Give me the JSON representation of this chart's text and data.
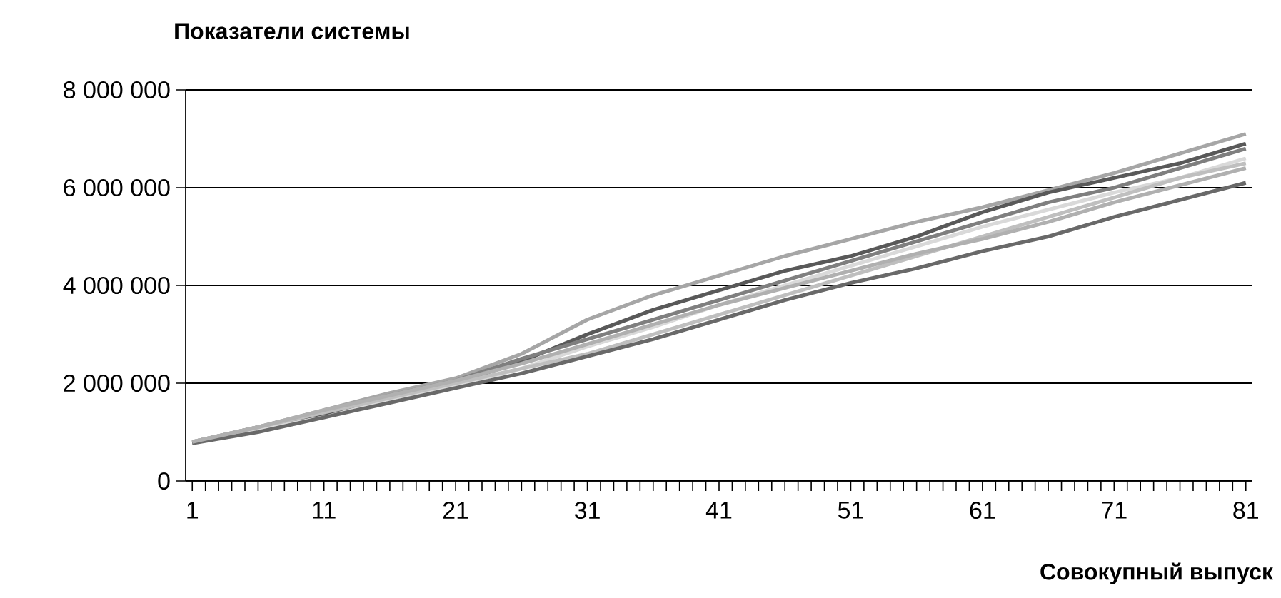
{
  "chart_data": {
    "type": "line",
    "xlabel": "Совокупный выпуск",
    "ylabel": "Показатели системы",
    "x": [
      1,
      6,
      11,
      16,
      21,
      26,
      31,
      36,
      41,
      46,
      51,
      56,
      61,
      66,
      71,
      76,
      81
    ],
    "series": [
      {
        "color": "#a6a6a6",
        "values": [
          800000,
          1100000,
          1450000,
          1800000,
          2100000,
          2600000,
          3300000,
          3800000,
          4200000,
          4600000,
          4950000,
          5300000,
          5600000,
          5950000,
          6300000,
          6700000,
          7100000
        ]
      },
      {
        "color": "#595959",
        "values": [
          780000,
          1050000,
          1350000,
          1700000,
          2000000,
          2450000,
          3000000,
          3500000,
          3900000,
          4300000,
          4600000,
          5000000,
          5500000,
          5900000,
          6200000,
          6500000,
          6900000
        ]
      },
      {
        "color": "#7f7f7f",
        "values": [
          800000,
          1100000,
          1400000,
          1750000,
          2050000,
          2500000,
          2900000,
          3300000,
          3700000,
          4100000,
          4500000,
          4900000,
          5300000,
          5700000,
          6000000,
          6400000,
          6800000
        ]
      },
      {
        "color": "#d9d9d9",
        "values": [
          800000,
          1050000,
          1300000,
          1650000,
          1950000,
          2300000,
          2750000,
          3150000,
          3600000,
          4000000,
          4400000,
          4800000,
          5200000,
          5550000,
          5900000,
          6200000,
          6600000
        ]
      },
      {
        "color": "#bfbfbf",
        "values": [
          800000,
          1100000,
          1400000,
          1700000,
          2000000,
          2300000,
          2600000,
          3000000,
          3400000,
          3800000,
          4200000,
          4600000,
          5000000,
          5400000,
          5800000,
          6200000,
          6500000
        ]
      },
      {
        "color": "#696969",
        "values": [
          770000,
          1000000,
          1300000,
          1600000,
          1900000,
          2200000,
          2550000,
          2900000,
          3300000,
          3700000,
          4050000,
          4350000,
          4700000,
          5000000,
          5400000,
          5750000,
          6100000
        ]
      },
      {
        "color": "#b0b0b0",
        "values": [
          800000,
          1100000,
          1450000,
          1750000,
          2050000,
          2400000,
          2800000,
          3200000,
          3600000,
          3950000,
          4300000,
          4650000,
          4950000,
          5300000,
          5700000,
          6050000,
          6400000
        ]
      }
    ],
    "xlim": [
      0.5,
      81.5
    ],
    "xticks": [
      1,
      {
        "value": 2,
        "label": null
      },
      {
        "value": 3,
        "label": null
      },
      {
        "value": 4,
        "label": null
      },
      {
        "value": 5,
        "label": null
      },
      {
        "value": 6,
        "label": null
      },
      {
        "value": 7,
        "label": null
      },
      {
        "value": 8,
        "label": null
      },
      {
        "value": 9,
        "label": null
      },
      {
        "value": 10,
        "label": null
      },
      11,
      {
        "value": 12,
        "label": null
      },
      {
        "value": 13,
        "label": null
      },
      {
        "value": 14,
        "label": null
      },
      {
        "value": 15,
        "label": null
      },
      {
        "value": 16,
        "label": null
      },
      {
        "value": 17,
        "label": null
      },
      {
        "value": 18,
        "label": null
      },
      {
        "value": 19,
        "label": null
      },
      {
        "value": 20,
        "label": null
      },
      21,
      {
        "value": 22,
        "label": null
      },
      {
        "value": 23,
        "label": null
      },
      {
        "value": 24,
        "label": null
      },
      {
        "value": 25,
        "label": null
      },
      {
        "value": 26,
        "label": null
      },
      {
        "value": 27,
        "label": null
      },
      {
        "value": 28,
        "label": null
      },
      {
        "value": 29,
        "label": null
      },
      {
        "value": 30,
        "label": null
      },
      31,
      {
        "value": 32,
        "label": null
      },
      {
        "value": 33,
        "label": null
      },
      {
        "value": 34,
        "label": null
      },
      {
        "value": 35,
        "label": null
      },
      {
        "value": 36,
        "label": null
      },
      {
        "value": 37,
        "label": null
      },
      {
        "value": 38,
        "label": null
      },
      {
        "value": 39,
        "label": null
      },
      {
        "value": 40,
        "label": null
      },
      41,
      {
        "value": 42,
        "label": null
      },
      {
        "value": 43,
        "label": null
      },
      {
        "value": 44,
        "label": null
      },
      {
        "value": 45,
        "label": null
      },
      {
        "value": 46,
        "label": null
      },
      {
        "value": 47,
        "label": null
      },
      {
        "value": 48,
        "label": null
      },
      {
        "value": 49,
        "label": null
      },
      {
        "value": 50,
        "label": null
      },
      51,
      {
        "value": 52,
        "label": null
      },
      {
        "value": 53,
        "label": null
      },
      {
        "value": 54,
        "label": null
      },
      {
        "value": 55,
        "label": null
      },
      {
        "value": 56,
        "label": null
      },
      {
        "value": 57,
        "label": null
      },
      {
        "value": 58,
        "label": null
      },
      {
        "value": 59,
        "label": null
      },
      {
        "value": 60,
        "label": null
      },
      61,
      {
        "value": 62,
        "label": null
      },
      {
        "value": 63,
        "label": null
      },
      {
        "value": 64,
        "label": null
      },
      {
        "value": 65,
        "label": null
      },
      {
        "value": 66,
        "label": null
      },
      {
        "value": 67,
        "label": null
      },
      {
        "value": 68,
        "label": null
      },
      {
        "value": 69,
        "label": null
      },
      {
        "value": 70,
        "label": null
      },
      71,
      {
        "value": 72,
        "label": null
      },
      {
        "value": 73,
        "label": null
      },
      {
        "value": 74,
        "label": null
      },
      {
        "value": 75,
        "label": null
      },
      {
        "value": 76,
        "label": null
      },
      {
        "value": 77,
        "label": null
      },
      {
        "value": 78,
        "label": null
      },
      {
        "value": 79,
        "label": null
      },
      {
        "value": 80,
        "label": null
      },
      81
    ],
    "ylim": [
      0,
      8000000
    ],
    "yticks": [
      0,
      {
        "value": 2000000,
        "label": "2 000 000"
      },
      {
        "value": 4000000,
        "label": "4 000 000"
      },
      {
        "value": 6000000,
        "label": "6 000 000"
      },
      {
        "value": 8000000,
        "label": "8 000 000"
      }
    ],
    "grid": "y"
  }
}
